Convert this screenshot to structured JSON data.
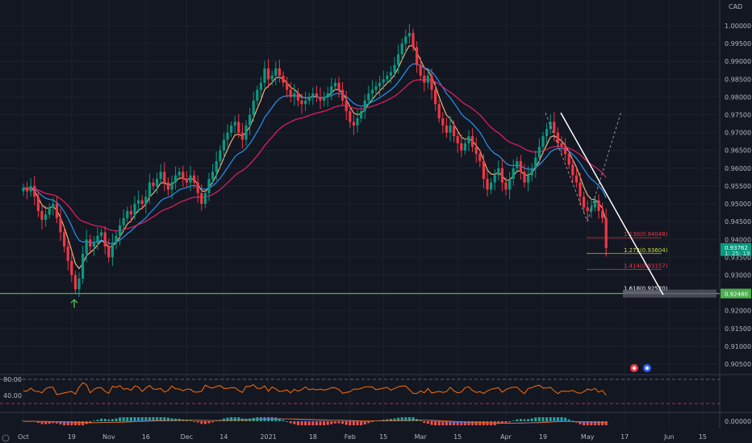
{
  "currency_label": "CAD",
  "chart_data": {
    "type": "candlestick",
    "currency": "CAD",
    "y_range": [
      0.9,
      1.005
    ],
    "y_ticks": [
      "1.00000",
      "0.99500",
      "0.99000",
      "0.98500",
      "0.98000",
      "0.97500",
      "0.97000",
      "0.96500",
      "0.96000",
      "0.95500",
      "0.95000",
      "0.94500",
      "0.94000",
      "0.93500",
      "0.93000",
      "0.92500",
      "0.92000",
      "0.91500",
      "0.91000",
      "0.90500"
    ],
    "x_labels": [
      {
        "label": "Oct",
        "index": 0
      },
      {
        "label": "19",
        "index": 13
      },
      {
        "label": "Nov",
        "index": 23
      },
      {
        "label": "16",
        "index": 33
      },
      {
        "label": "Dec",
        "index": 44
      },
      {
        "label": "14",
        "index": 54
      },
      {
        "label": "2021",
        "index": 66
      },
      {
        "label": "18",
        "index": 78
      },
      {
        "label": "Feb",
        "index": 88
      },
      {
        "label": "15",
        "index": 97
      },
      {
        "label": "Mar",
        "index": 107
      },
      {
        "label": "15",
        "index": 117
      },
      {
        "label": "Apr",
        "index": 130
      },
      {
        "label": "19",
        "index": 140
      },
      {
        "label": "May",
        "index": 152
      },
      {
        "label": "17",
        "index": 162
      },
      {
        "label": "Jun",
        "index": 174
      },
      {
        "label": "15",
        "index": 183
      }
    ],
    "closes": [
      0.9545,
      0.9535,
      0.955,
      0.952,
      0.948,
      0.9455,
      0.947,
      0.949,
      0.95,
      0.946,
      0.942,
      0.938,
      0.934,
      0.93,
      0.926,
      0.929,
      0.936,
      0.94,
      0.938,
      0.939,
      0.941,
      0.942,
      0.938,
      0.935,
      0.939,
      0.941,
      0.944,
      0.946,
      0.948,
      0.947,
      0.95,
      0.951,
      0.95,
      0.952,
      0.956,
      0.955,
      0.957,
      0.959,
      0.956,
      0.954,
      0.956,
      0.958,
      0.959,
      0.957,
      0.956,
      0.958,
      0.956,
      0.953,
      0.95,
      0.953,
      0.957,
      0.959,
      0.962,
      0.965,
      0.968,
      0.97,
      0.972,
      0.973,
      0.97,
      0.968,
      0.972,
      0.975,
      0.979,
      0.982,
      0.984,
      0.988,
      0.985,
      0.986,
      0.988,
      0.986,
      0.984,
      0.982,
      0.98,
      0.981,
      0.979,
      0.978,
      0.979,
      0.98,
      0.981,
      0.98,
      0.979,
      0.98,
      0.981,
      0.983,
      0.984,
      0.982,
      0.979,
      0.976,
      0.973,
      0.972,
      0.974,
      0.976,
      0.979,
      0.981,
      0.982,
      0.983,
      0.984,
      0.985,
      0.986,
      0.987,
      0.989,
      0.992,
      0.995,
      0.997,
      0.998,
      0.994,
      0.989,
      0.986,
      0.984,
      0.986,
      0.982,
      0.978,
      0.974,
      0.972,
      0.97,
      0.972,
      0.969,
      0.967,
      0.965,
      0.967,
      0.969,
      0.966,
      0.964,
      0.962,
      0.957,
      0.954,
      0.956,
      0.958,
      0.96,
      0.956,
      0.954,
      0.957,
      0.96,
      0.962,
      0.959,
      0.956,
      0.958,
      0.96,
      0.963,
      0.966,
      0.969,
      0.971,
      0.973,
      0.97,
      0.967,
      0.966,
      0.964,
      0.961,
      0.958,
      0.956,
      0.952,
      0.949,
      0.948,
      0.949,
      0.951,
      0.948,
      0.946,
      0.9376
    ],
    "ma_fast_color": "#f0b37a",
    "ma_mid_color": "#2196f3",
    "ma_slow_color": "#e91e63",
    "current_price": "0.93762",
    "current_price_sub": "1: 25: 19",
    "support_price": "0.92480",
    "fib_levels": [
      {
        "label": "1.130(0.94048)",
        "value": 0.94048,
        "color": "#f23645"
      },
      {
        "label": "1.272(0.93604)",
        "value": 0.93604,
        "color": "#cddc39"
      },
      {
        "label": "1.414(0.93157)",
        "value": 0.93157,
        "color": "#f23645"
      },
      {
        "label": "1.618(0.92520)",
        "value": 0.9252,
        "color": "#ffffff"
      }
    ],
    "rsi": {
      "levels": [
        "80.00",
        "40.00"
      ],
      "upper": 80,
      "lower": 40
    },
    "macd_label": "0.00000"
  }
}
